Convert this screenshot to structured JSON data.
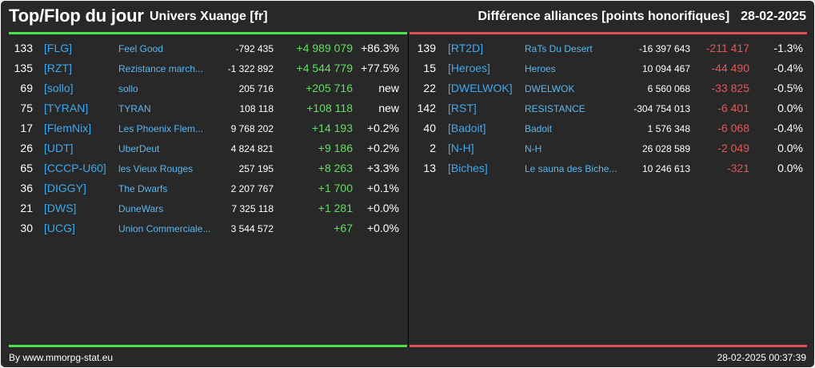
{
  "header": {
    "title": "Top/Flop du jour",
    "universe": "Univers Xuange [fr]",
    "ranking": "Différence alliances [points honorifiques]",
    "date": "28-02-2025"
  },
  "colors": {
    "top_bar": "#4fe04f",
    "flop_bar": "#e05050",
    "positive": "#5fe05f",
    "negative": "#e85555",
    "tag": "#3ea8ef"
  },
  "top": [
    {
      "rank": "133",
      "tag": "[FLG]",
      "name": "Feel Good",
      "total": "-792 435",
      "diff": "+4 989 079",
      "pct": "+86.3%"
    },
    {
      "rank": "135",
      "tag": "[RZT]",
      "name": "Rezistance march...",
      "total": "-1 322 892",
      "diff": "+4 544 779",
      "pct": "+77.5%"
    },
    {
      "rank": "69",
      "tag": "[sollo]",
      "name": "sollo",
      "total": "205 716",
      "diff": "+205 716",
      "pct": "new"
    },
    {
      "rank": "75",
      "tag": "[TYRAN]",
      "name": "TYRAN",
      "total": "108 118",
      "diff": "+108 118",
      "pct": "new"
    },
    {
      "rank": "17",
      "tag": "[FlemNix]",
      "name": "Les Phoenix Flem...",
      "total": "9 768 202",
      "diff": "+14 193",
      "pct": "+0.2%"
    },
    {
      "rank": "26",
      "tag": "[UDT]",
      "name": "UberDeut",
      "total": "4 824 821",
      "diff": "+9 186",
      "pct": "+0.2%"
    },
    {
      "rank": "65",
      "tag": "[CCCP-U60]",
      "name": "les Vieux Rouges",
      "total": "257 195",
      "diff": "+8 263",
      "pct": "+3.3%"
    },
    {
      "rank": "36",
      "tag": "[DIGGY]",
      "name": "The Dwarfs",
      "total": "2 207 767",
      "diff": "+1 700",
      "pct": "+0.1%"
    },
    {
      "rank": "21",
      "tag": "[DWS]",
      "name": "DuneWars",
      "total": "7 325 118",
      "diff": "+1 281",
      "pct": "+0.0%"
    },
    {
      "rank": "30",
      "tag": "[UCG]",
      "name": "Union Commerciale...",
      "total": "3 544 572",
      "diff": "+67",
      "pct": "+0.0%"
    }
  ],
  "flop": [
    {
      "rank": "139",
      "tag": "[RT2D]",
      "name": "RaTs Du Desert",
      "total": "-16 397 643",
      "diff": "-211 417",
      "pct": "-1.3%"
    },
    {
      "rank": "15",
      "tag": "[Heroes]",
      "name": "Heroes",
      "total": "10 094 467",
      "diff": "-44 490",
      "pct": "-0.4%"
    },
    {
      "rank": "22",
      "tag": "[DWELWOK]",
      "name": "DWELWOK",
      "total": "6 560 068",
      "diff": "-33 825",
      "pct": "-0.5%"
    },
    {
      "rank": "142",
      "tag": "[RST]",
      "name": "RESISTANCE",
      "total": "-304 754 013",
      "diff": "-6 401",
      "pct": "0.0%"
    },
    {
      "rank": "40",
      "tag": "[Badoit]",
      "name": "Badoit",
      "total": "1 576 348",
      "diff": "-6 068",
      "pct": "-0.4%"
    },
    {
      "rank": "2",
      "tag": "[N-H]",
      "name": "N-H",
      "total": "26 028 589",
      "diff": "-2 049",
      "pct": "0.0%"
    },
    {
      "rank": "13",
      "tag": "[Biches]",
      "name": "Le sauna des Biche...",
      "total": "10 246 613",
      "diff": "-321",
      "pct": "0.0%"
    }
  ],
  "footer": {
    "credit": "By www.mmorpg-stat.eu",
    "timestamp": "28-02-2025 00:37:39"
  }
}
